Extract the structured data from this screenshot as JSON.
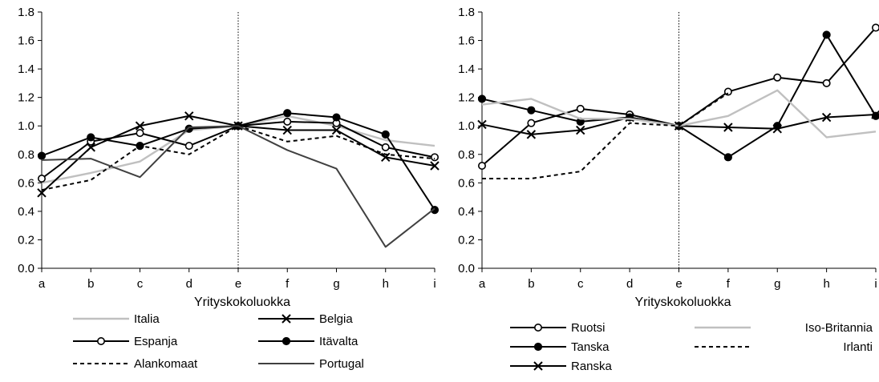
{
  "chart_data": [
    {
      "type": "line",
      "title": "",
      "xlabel": "Yrityskokoluokka",
      "ylabel": "",
      "ylim": [
        0,
        1.8
      ],
      "ytick_step": 0.2,
      "grid": false,
      "categories": [
        "a",
        "b",
        "c",
        "d",
        "e",
        "f",
        "g",
        "h",
        "i"
      ],
      "yticks": [
        "0.0",
        "0.2",
        "0.4",
        "0.6",
        "0.8",
        "1.0",
        "1.2",
        "1.4",
        "1.6",
        "1.8"
      ],
      "reference_line_at": "e",
      "legend": "bottom",
      "series": [
        {
          "name": "Italia",
          "style": "solid",
          "marker": "none",
          "color": "#c0c0c0",
          "values": [
            0.6,
            0.67,
            0.75,
            0.97,
            1.0,
            1.07,
            1.0,
            0.9,
            0.86
          ]
        },
        {
          "name": "Espanja",
          "style": "solid",
          "marker": "open-circle",
          "color": "#000000",
          "values": [
            0.63,
            0.89,
            0.95,
            0.86,
            1.0,
            1.03,
            1.02,
            0.85,
            0.78
          ]
        },
        {
          "name": "Alankomaat",
          "style": "dashed",
          "marker": "none",
          "color": "#000000",
          "values": [
            0.55,
            0.62,
            0.86,
            0.8,
            1.0,
            0.89,
            0.93,
            0.8,
            0.77
          ]
        },
        {
          "name": "Belgia",
          "style": "solid",
          "marker": "x",
          "color": "#000000",
          "values": [
            0.53,
            0.85,
            1.0,
            1.07,
            1.0,
            0.97,
            0.97,
            0.78,
            0.72
          ]
        },
        {
          "name": "Itävalta",
          "style": "solid",
          "marker": "filled-circle",
          "color": "#000000",
          "values": [
            0.79,
            0.92,
            0.86,
            0.98,
            1.0,
            1.09,
            1.06,
            0.94,
            0.41
          ]
        },
        {
          "name": "Portugal",
          "style": "solid",
          "marker": "none",
          "color": "#404040",
          "values": [
            0.76,
            0.77,
            0.64,
            0.99,
            1.0,
            0.83,
            0.7,
            0.15,
            0.42
          ]
        }
      ]
    },
    {
      "type": "line",
      "title": "",
      "xlabel": "Yrityskokoluokka",
      "ylabel": "",
      "ylim": [
        0,
        1.8
      ],
      "ytick_step": 0.2,
      "grid": false,
      "categories": [
        "a",
        "b",
        "c",
        "d",
        "e",
        "f",
        "g",
        "h",
        "i"
      ],
      "yticks": [
        "0.0",
        "0.2",
        "0.4",
        "0.6",
        "0.8",
        "1.0",
        "1.2",
        "1.4",
        "1.6",
        "1.8"
      ],
      "reference_line_at": "e",
      "legend": "bottom",
      "series": [
        {
          "name": "Ruotsi",
          "style": "solid",
          "marker": "open-circle",
          "color": "#000000",
          "values": [
            0.72,
            1.02,
            1.12,
            1.08,
            1.0,
            1.24,
            1.34,
            1.3,
            1.69
          ]
        },
        {
          "name": "Tanska",
          "style": "solid",
          "marker": "filled-circle",
          "color": "#000000",
          "values": [
            1.19,
            1.11,
            1.03,
            1.06,
            1.0,
            0.78,
            1.0,
            1.64,
            1.07
          ]
        },
        {
          "name": "Ranska",
          "style": "solid",
          "marker": "x",
          "color": "#000000",
          "values": [
            1.01,
            0.94,
            0.97,
            1.06,
            1.0,
            0.99,
            0.98,
            1.06,
            1.08
          ]
        },
        {
          "name": "Iso-Britannia",
          "style": "solid",
          "marker": "none",
          "color": "#c0c0c0",
          "values": [
            1.15,
            1.19,
            1.05,
            1.05,
            1.0,
            1.07,
            1.25,
            0.92,
            0.96
          ]
        },
        {
          "name": "Irlanti",
          "style": "dashed",
          "marker": "none",
          "color": "#000000",
          "values": [
            0.63,
            0.63,
            0.68,
            1.02,
            1.0,
            1.23,
            null,
            null,
            null
          ]
        }
      ]
    }
  ]
}
